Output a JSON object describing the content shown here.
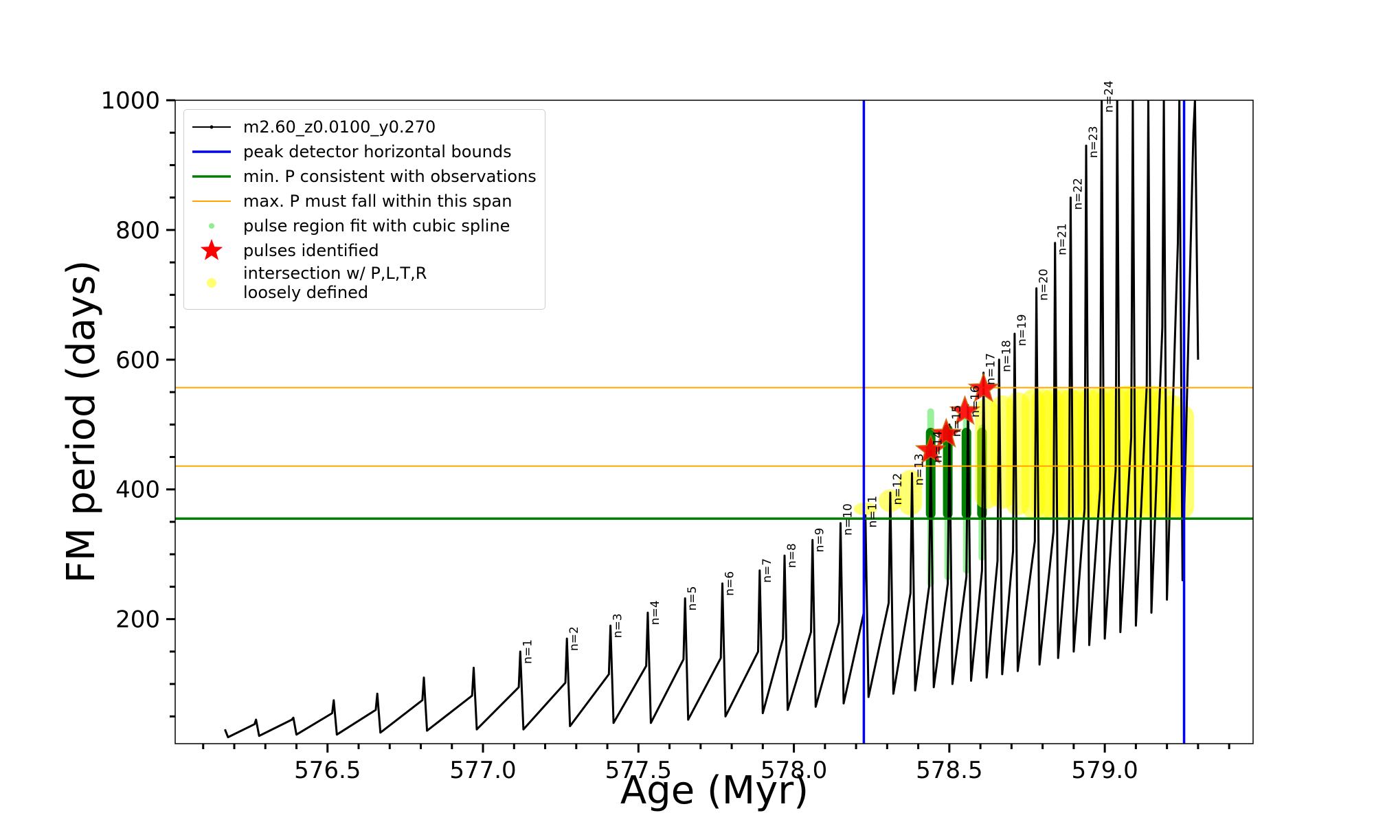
{
  "chart_data": {
    "type": "line",
    "xlabel": "Age (Myr)",
    "ylabel": "FM period (days)",
    "xlim": [
      576.01,
      579.477
    ],
    "ylim": [
      8,
      1000
    ],
    "xticks": [
      576.5,
      {
        "value": 577,
        "label": "577.0"
      },
      577.5,
      {
        "value": 578,
        "label": "578.0"
      },
      578.5,
      {
        "value": 579,
        "label": "579.0"
      }
    ],
    "xminor": [
      576.1,
      576.2,
      576.3,
      576.4,
      576.6,
      576.7,
      576.8,
      576.9,
      577.1,
      577.2,
      577.3,
      577.4,
      577.6,
      577.7,
      577.8,
      577.9,
      578.1,
      578.2,
      578.3,
      578.4,
      578.6,
      578.7,
      578.8,
      578.9,
      579.1,
      579.2,
      579.3,
      579.4
    ],
    "yticks": [
      200,
      400,
      600,
      800,
      1000
    ],
    "yminor": [
      50,
      100,
      150,
      250,
      300,
      350,
      450,
      500,
      550,
      650,
      700,
      750,
      850,
      900,
      950
    ],
    "legend": "upper left",
    "series": [
      {
        "name": "m2.60_z0.0100_y0.270",
        "color": "#000000",
        "kind": "line",
        "x": [
          576.17,
          576.18,
          576.265,
          576.27,
          576.28,
          576.385,
          576.39,
          576.4,
          576.515,
          576.52,
          576.53,
          576.655,
          576.66,
          576.67,
          576.805,
          576.81,
          576.82,
          576.965,
          576.97,
          576.98,
          577.115,
          577.12,
          577.13,
          577.265,
          577.27,
          577.28,
          577.405,
          577.41,
          577.42,
          577.525,
          577.53,
          577.54,
          577.645,
          577.65,
          577.66,
          577.765,
          577.77,
          577.78,
          577.885,
          577.89,
          577.9,
          577.965,
          577.97,
          577.98,
          578.055,
          578.06,
          578.07,
          578.145,
          578.15,
          578.16,
          578.225,
          578.23,
          578.24,
          578.305,
          578.31,
          578.32,
          578.375,
          578.38,
          578.39,
          578.435,
          578.44,
          578.45,
          578.495,
          578.5,
          578.51,
          578.555,
          578.56,
          578.57,
          578.605,
          578.61,
          578.62,
          578.655,
          578.66,
          578.67,
          578.705,
          578.71,
          578.72,
          578.775,
          578.78,
          578.79,
          578.835,
          578.84,
          578.85,
          578.885,
          578.89,
          578.9,
          578.935,
          578.94,
          578.95,
          578.985,
          578.99,
          579.0,
          579.035,
          579.04,
          579.05,
          579.085,
          579.09,
          579.1,
          579.135,
          579.14,
          579.15,
          579.185,
          579.19,
          579.2,
          579.235,
          579.24,
          579.25,
          579.285,
          579.29,
          579.3
        ],
        "values": [
          30,
          18,
          38,
          45,
          20,
          45,
          48,
          22,
          55,
          75,
          22,
          60,
          85,
          25,
          75,
          110,
          28,
          82,
          125,
          30,
          95,
          150,
          30,
          102,
          170,
          35,
          115,
          190,
          40,
          128,
          210,
          40,
          138,
          232,
          45,
          140,
          255,
          50,
          150,
          275,
          55,
          170,
          298,
          60,
          180,
          322,
          65,
          195,
          348,
          70,
          210,
          360,
          80,
          225,
          395,
          85,
          240,
          425,
          90,
          250,
          460,
          95,
          255,
          500,
          100,
          265,
          530,
          105,
          275,
          580,
          110,
          290,
          600,
          115,
          305,
          640,
          120,
          320,
          710,
          130,
          335,
          780,
          140,
          350,
          850,
          150,
          370,
          930,
          160,
          400,
          1000,
          170,
          430,
          1000,
          180,
          480,
          1000,
          190,
          560,
          1000,
          210,
          650,
          1000,
          230,
          780,
          1000,
          260,
          950,
          1000,
          600
        ]
      },
      {
        "name": "peak detector horizontal bounds",
        "color": "#0000ff",
        "kind": "vline",
        "x": [
          578.225,
          579.255
        ]
      },
      {
        "name": "min. P consistent with observations",
        "color": "#008000",
        "kind": "hline",
        "values": [
          355
        ]
      },
      {
        "name": "max. P must fall within this span",
        "color": "#ffa500",
        "kind": "hline",
        "values": [
          436,
          557
        ]
      },
      {
        "name": "pulse region fit with cubic spline",
        "color": "#90ee90",
        "kind": "range",
        "x": [
          578.44,
          578.495,
          578.555,
          578.605
        ],
        "low": [
          250,
          260,
          270,
          290
        ],
        "high": [
          525,
          500,
          510,
          500
        ],
        "core_color": "#008000",
        "core_low": [
          355,
          355,
          355,
          355
        ],
        "core_high": [
          495,
          500,
          495,
          495
        ]
      },
      {
        "name": "pulses identified",
        "color": "#ff0000",
        "kind": "star",
        "x": [
          578.44,
          578.49,
          578.55,
          578.61
        ],
        "values": [
          460,
          485,
          520,
          555
        ]
      },
      {
        "name": "intersection w/ P,L,T,R\nloosely defined",
        "color": "#ffff00",
        "kind": "range",
        "x": [
          578.23,
          578.31,
          578.375,
          578.62,
          578.67,
          578.72,
          578.77,
          578.8,
          578.83,
          578.86,
          578.89,
          578.92,
          578.95,
          578.98,
          579.01,
          579.04,
          579.07,
          579.1,
          579.13,
          579.16,
          579.19,
          579.22,
          579.25
        ],
        "low": [
          360,
          365,
          360,
          370,
          370,
          360,
          355,
          355,
          355,
          355,
          355,
          355,
          355,
          355,
          355,
          355,
          355,
          355,
          355,
          355,
          355,
          355,
          355
        ],
        "high": [
          380,
          400,
          430,
          540,
          545,
          550,
          555,
          555,
          555,
          555,
          555,
          555,
          555,
          557,
          557,
          557,
          560,
          560,
          560,
          560,
          557,
          545,
          530
        ]
      }
    ],
    "pulse_labels": {
      "text": [
        "n=1",
        "n=2",
        "n=3",
        "n=4",
        "n=5",
        "n=6",
        "n=7",
        "n=8",
        "n=9",
        "n=10",
        "n=11",
        "n=12",
        "n=13",
        "n=14",
        "n=15",
        "n=16",
        "n=17",
        "n=18",
        "n=19",
        "n=20",
        "n=21",
        "n=22",
        "n=23",
        "n=24"
      ],
      "x": [
        577.12,
        577.27,
        577.41,
        577.53,
        577.65,
        577.77,
        577.89,
        577.97,
        578.06,
        578.15,
        578.23,
        578.31,
        578.38,
        578.44,
        578.5,
        578.56,
        578.61,
        578.66,
        578.71,
        578.78,
        578.84,
        578.89,
        578.94,
        578.99
      ]
    }
  }
}
